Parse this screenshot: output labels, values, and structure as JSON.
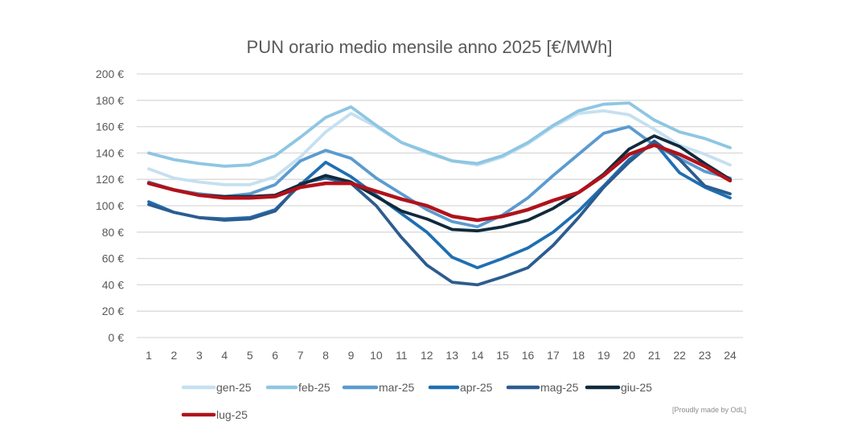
{
  "chart_data": {
    "type": "line",
    "title": "PUN orario medio mensile anno 2025 [€/MWh]",
    "xlabel": "",
    "ylabel": "",
    "x": [
      1,
      2,
      3,
      4,
      5,
      6,
      7,
      8,
      9,
      10,
      11,
      12,
      13,
      14,
      15,
      16,
      17,
      18,
      19,
      20,
      21,
      22,
      23,
      24
    ],
    "ylim": [
      0,
      200
    ],
    "yticks": [
      0,
      20,
      40,
      60,
      80,
      100,
      120,
      140,
      160,
      180,
      200
    ],
    "ytick_labels": [
      "0 €",
      "20 €",
      "40 €",
      "60 €",
      "80 €",
      "100 €",
      "120 €",
      "140 €",
      "160 €",
      "180 €",
      "200 €"
    ],
    "grid": true,
    "legend_position": "bottom",
    "series": [
      {
        "name": "gen-25",
        "color": "#c5e0f0",
        "values": [
          128,
          121,
          118,
          116,
          116,
          122,
          137,
          156,
          170,
          160,
          148,
          140,
          134,
          131,
          137,
          147,
          160,
          170,
          172,
          169,
          158,
          146,
          139,
          131
        ]
      },
      {
        "name": "feb-25",
        "color": "#8ec6e3",
        "values": [
          140,
          135,
          132,
          130,
          131,
          138,
          152,
          167,
          175,
          161,
          148,
          141,
          134,
          132,
          138,
          148,
          161,
          172,
          177,
          178,
          165,
          156,
          151,
          144
        ]
      },
      {
        "name": "mar-25",
        "color": "#5b9bd0",
        "values": [
          118,
          112,
          109,
          107,
          109,
          116,
          134,
          142,
          136,
          121,
          109,
          97,
          88,
          84,
          93,
          106,
          123,
          139,
          155,
          160,
          146,
          136,
          126,
          121
        ]
      },
      {
        "name": "apr-25",
        "color": "#1f6fb2",
        "values": [
          103,
          95,
          91,
          90,
          91,
          97,
          116,
          133,
          122,
          108,
          94,
          80,
          61,
          53,
          60,
          68,
          80,
          96,
          115,
          135,
          148,
          125,
          114,
          106
        ]
      },
      {
        "name": "mag-25",
        "color": "#2d5c8f",
        "values": [
          101,
          95,
          91,
          89,
          90,
          96,
          117,
          121,
          117,
          100,
          76,
          55,
          42,
          40,
          46,
          53,
          70,
          91,
          114,
          133,
          149,
          135,
          115,
          109
        ]
      },
      {
        "name": "giu-25",
        "color": "#102a3c",
        "values": [
          117,
          112,
          108,
          107,
          107,
          108,
          116,
          123,
          118,
          107,
          96,
          90,
          82,
          81,
          84,
          89,
          98,
          110,
          124,
          143,
          153,
          145,
          132,
          120
        ]
      },
      {
        "name": "lug-25",
        "color": "#b0121b",
        "values": [
          117,
          112,
          108,
          106,
          106,
          107,
          114,
          117,
          117,
          111,
          105,
          100,
          92,
          89,
          92,
          97,
          104,
          110,
          123,
          139,
          146,
          139,
          130,
          119
        ]
      }
    ],
    "annotations": [
      "[Proudly made by OdL]"
    ]
  }
}
